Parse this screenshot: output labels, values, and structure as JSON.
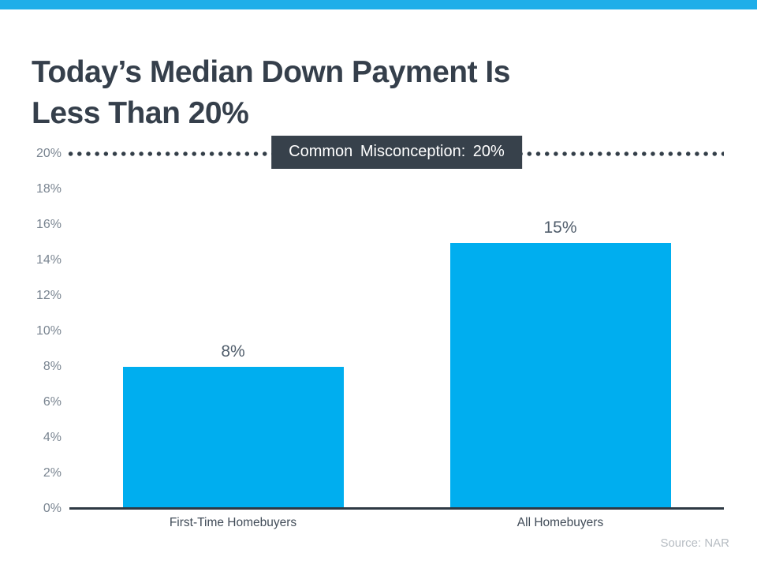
{
  "page": {
    "title": "Today’s Median Down Payment Is\nLess Than 20%",
    "source": "Source: NAR",
    "accent_color": "#1FAEE9"
  },
  "chart_data": {
    "type": "bar",
    "title": "Today’s Median Down Payment Is Less Than 20%",
    "categories": [
      "First-Time Homebuyers",
      "All Homebuyers"
    ],
    "values": [
      8,
      15
    ],
    "value_labels": [
      "8%",
      "15%"
    ],
    "unit": "%",
    "ylim": [
      0,
      20
    ],
    "yticks": [
      "0%",
      "2%",
      "4%",
      "6%",
      "8%",
      "10%",
      "12%",
      "14%",
      "16%",
      "18%",
      "20%"
    ],
    "grid": false,
    "legend": false,
    "bar_color": "#00AEEF",
    "reference_line": {
      "value": 20,
      "style": "dotted",
      "label": "Common Misconception: 20%"
    },
    "source": "Source: NAR"
  }
}
